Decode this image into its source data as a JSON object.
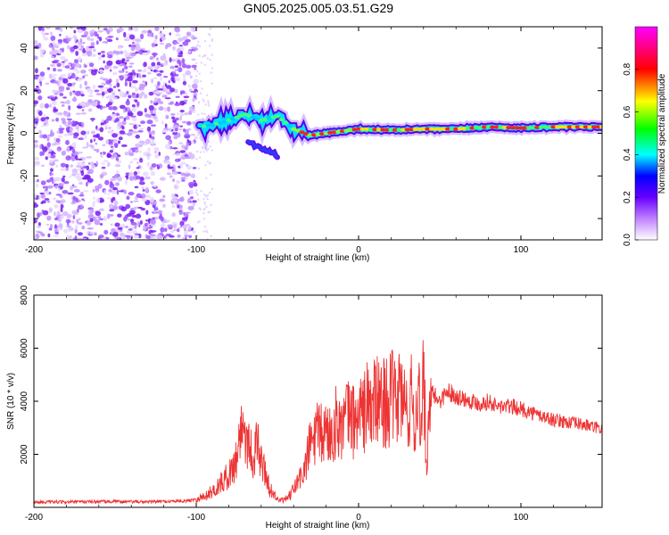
{
  "title": "GN05.2025.005.03.51.G29",
  "chart_data": [
    {
      "type": "heatmap",
      "xlabel": "Height of straight line (km)",
      "ylabel": "Frequency (Hz)",
      "xlim": [
        -200,
        150
      ],
      "ylim": [
        -50,
        50
      ],
      "x_ticks": [
        -200,
        -100,
        0,
        100
      ],
      "y_ticks": [
        -40,
        -20,
        0,
        20,
        40
      ],
      "colorbar": {
        "label": "Normalized spectral amplitude",
        "range": [
          0,
          1
        ],
        "ticks": [
          0.0,
          0.2,
          0.4,
          0.6,
          0.8
        ],
        "colors": [
          "#ffffff",
          "#8800ff",
          "#0000ff",
          "#00ffff",
          "#00ff00",
          "#ffff00",
          "#ff0000",
          "#ff00ff"
        ]
      },
      "ridge": {
        "x": [
          -98,
          -90,
          -80,
          -70,
          -60,
          -50,
          -40,
          -30,
          -20,
          -10,
          0,
          20,
          40,
          60,
          80,
          100,
          120,
          150
        ],
        "frequency": [
          3,
          4,
          6,
          9,
          6,
          8,
          2,
          -1,
          0,
          1,
          2,
          1.5,
          2,
          2,
          3,
          2.5,
          3,
          3
        ]
      },
      "noise_region_x": [
        -200,
        -100
      ]
    },
    {
      "type": "line",
      "xlabel": "Height of straight line (km)",
      "ylabel": "SNR (10 * v/v)",
      "xlim": [
        -200,
        150
      ],
      "ylim": [
        0,
        8000
      ],
      "x_ticks": [
        -200,
        -100,
        0,
        100
      ],
      "y_ticks": [
        2000,
        4000,
        6000,
        8000
      ],
      "line_color": "#ee3333",
      "series": [
        {
          "x": [
            -200,
            -180,
            -160,
            -140,
            -120,
            -105,
            -95,
            -88,
            -82,
            -78,
            -75,
            -72,
            -70,
            -68,
            -65,
            -62,
            -60,
            -57,
            -55,
            -52,
            -50,
            -47,
            -45,
            -42,
            -40,
            -38,
            -35,
            -32,
            -30,
            -27,
            -25,
            -22,
            -20,
            -17,
            -15,
            -12,
            -10,
            -7,
            -5,
            -2,
            0,
            3,
            5,
            8,
            10,
            13,
            15,
            18,
            20,
            23,
            25,
            28,
            30,
            33,
            35,
            37,
            39,
            40,
            42,
            44,
            45,
            47,
            50,
            55,
            60,
            65,
            70,
            75,
            80,
            85,
            90,
            95,
            100,
            105,
            110,
            115,
            120,
            130,
            140,
            150
          ],
          "y": [
            200,
            200,
            220,
            210,
            220,
            250,
            400,
            700,
            1100,
            1400,
            1900,
            3200,
            2800,
            2500,
            1900,
            2400,
            1700,
            1300,
            700,
            500,
            300,
            250,
            300,
            450,
            700,
            900,
            1200,
            1700,
            2400,
            2600,
            2800,
            2700,
            2900,
            2700,
            3100,
            3300,
            3000,
            3400,
            3500,
            3100,
            3700,
            3400,
            4000,
            3600,
            4100,
            3800,
            4100,
            3900,
            4200,
            3800,
            4400,
            3900,
            3600,
            4100,
            3000,
            4800,
            2600,
            5200,
            1500,
            3600,
            4300,
            4200,
            4000,
            4400,
            4200,
            4100,
            4000,
            3900,
            4000,
            3800,
            3800,
            3800,
            3700,
            3600,
            3500,
            3400,
            3300,
            3200,
            3100,
            2950
          ]
        }
      ]
    }
  ]
}
